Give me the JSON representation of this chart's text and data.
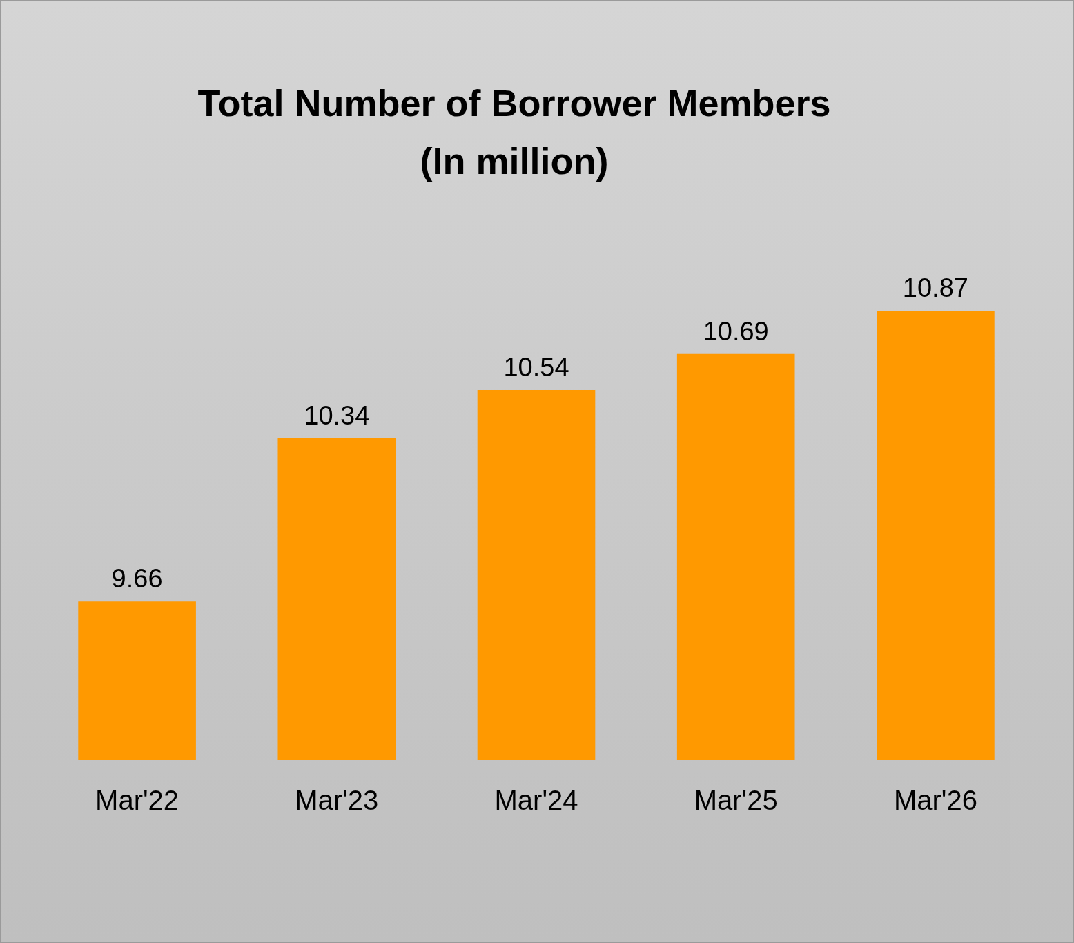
{
  "chart_data": {
    "type": "bar",
    "title": "Total Number of Borrower Members\n(In million)",
    "categories": [
      "Mar'22",
      "Mar'23",
      "Mar'24",
      "Mar'25",
      "Mar'26"
    ],
    "values": [
      9.66,
      10.34,
      10.54,
      10.69,
      10.87
    ],
    "color": "#ff9900",
    "ylim": [
      9,
      10.87
    ],
    "data_labels": true,
    "tick_labels": "x",
    "grid": false
  }
}
